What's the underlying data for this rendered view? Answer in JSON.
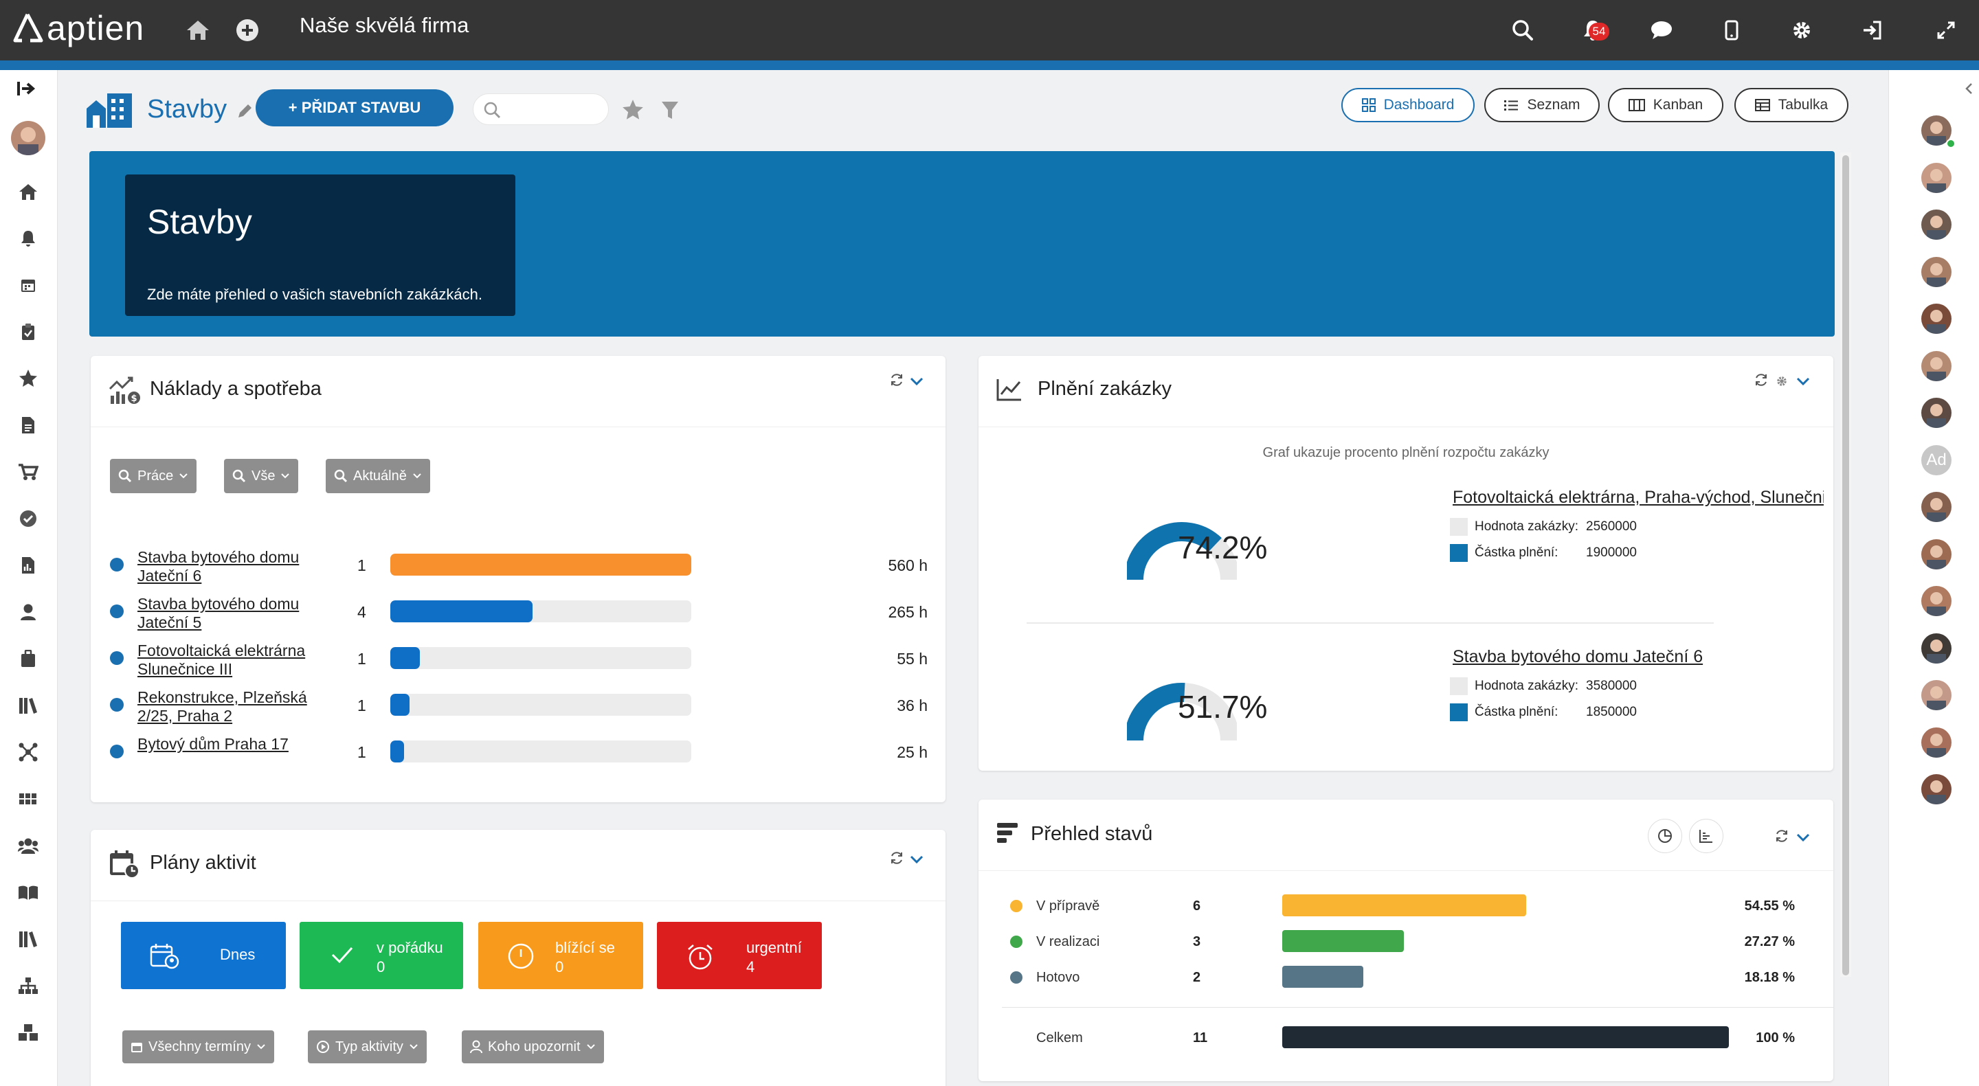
{
  "app": {
    "logo_text": "aptien",
    "company": "Naše skvělá firma",
    "notification_count": "54"
  },
  "page": {
    "title": "Stavby",
    "add_button": "+ PŘIDAT STAVBU",
    "search_placeholder": ""
  },
  "views": [
    {
      "label": "Dashboard",
      "icon": "grid-icon",
      "active": true
    },
    {
      "label": "Seznam",
      "icon": "list-icon",
      "active": false
    },
    {
      "label": "Kanban",
      "icon": "kanban-icon",
      "active": false
    },
    {
      "label": "Tabulka",
      "icon": "table-icon",
      "active": false
    }
  ],
  "banner": {
    "title": "Stavby",
    "subtitle": "Zde máte přehled o vašich stavebních zakázkách."
  },
  "costs": {
    "title": "Náklady a spotřeba",
    "filters": [
      "Práce",
      "Vše",
      "Aktuálně"
    ],
    "max_hours": 560,
    "rows": [
      {
        "name": "Stavba bytového domu Jateční 6",
        "count": "1",
        "hours": 560,
        "hours_label": "560 h",
        "color": "#f7902d"
      },
      {
        "name": "Stavba bytového domu Jateční 5",
        "count": "4",
        "hours": 265,
        "hours_label": "265 h",
        "color": "#0f6ec5"
      },
      {
        "name": "Fotovoltaická elektrárna Slunečnice III",
        "count": "1",
        "hours": 55,
        "hours_label": "55 h",
        "color": "#0f6ec5"
      },
      {
        "name": "Rekonstrukce, Plzeňská 2/25, Praha 2",
        "count": "1",
        "hours": 36,
        "hours_label": "36 h",
        "color": "#0f6ec5"
      },
      {
        "name": "Bytový dům Praha 17",
        "count": "1",
        "hours": 25,
        "hours_label": "25 h",
        "color": "#0f6ec5"
      }
    ]
  },
  "activities": {
    "title": "Plány aktivit",
    "tiles": [
      {
        "label": "Dnes",
        "count": "",
        "color": "#0f73d2"
      },
      {
        "label": "v pořádku",
        "count": "0",
        "color": "#1db954"
      },
      {
        "label": "blížící se",
        "count": "0",
        "color": "#f89a1c"
      },
      {
        "label": "urgentní",
        "count": "4",
        "color": "#dc1e1e"
      }
    ],
    "filters": [
      "Všechny termíny",
      "Typ aktivity",
      "Koho upozornit"
    ]
  },
  "fulfillment": {
    "title": "Plnění zakázky",
    "subtitle": "Graf ukazuje procento plnění rozpočtu zakázky",
    "value_label": "Hodnota zakázky:",
    "amount_label": "Částka plnění:",
    "projects": [
      {
        "name": "Fotovoltaická elektrárna, Praha-východ, Slunečnice III",
        "percent": 74.2,
        "percent_label": "74.2%",
        "value": "2560000",
        "amount": "1900000"
      },
      {
        "name": "Stavba bytového domu Jateční 6",
        "percent": 51.7,
        "percent_label": "51.7%",
        "value": "3580000",
        "amount": "1850000"
      }
    ],
    "colors": {
      "fill": "#0f73ae",
      "track": "#e8e8e8"
    }
  },
  "statuses": {
    "title": "Přehled stavů",
    "rows": [
      {
        "label": "V přípravě",
        "count": "6",
        "percent": 54.55,
        "percent_label": "54.55 %",
        "color": "#f9b531"
      },
      {
        "label": "V realizaci",
        "count": "3",
        "percent": 27.27,
        "percent_label": "27.27 %",
        "color": "#40a84a"
      },
      {
        "label": "Hotovo",
        "count": "2",
        "percent": 18.18,
        "percent_label": "18.18 %",
        "color": "#567587"
      }
    ],
    "total": {
      "label": "Celkem",
      "count": "11",
      "percent": 100,
      "percent_label": "100 %",
      "color": "#1f2a35"
    }
  },
  "right_users": [
    "avatar-1",
    "avatar-2",
    "avatar-3",
    "avatar-4",
    "avatar-5",
    "avatar-6",
    "avatar-7",
    "Ad",
    "avatar-9",
    "avatar-10",
    "avatar-11",
    "avatar-12",
    "avatar-13",
    "avatar-14",
    "avatar-15"
  ]
}
